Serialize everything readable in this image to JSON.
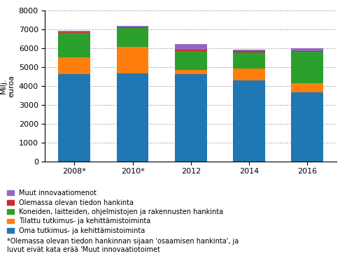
{
  "chart_data": {
    "type": "bar",
    "stacked": true,
    "categories": [
      "2008*",
      "2010*",
      "2012",
      "2014",
      "2016"
    ],
    "series": [
      {
        "name": "Oma tutkimus- ja kehittämistoiminta",
        "values": [
          4600,
          4650,
          4600,
          4300,
          3650
        ]
      },
      {
        "name": "Tilattu tutkimus- ja kehittämistoiminta",
        "values": [
          900,
          1400,
          250,
          600,
          500
        ]
      },
      {
        "name": "Koneiden, laitteiden, ohjelmistojen ja rakennusten hankinta",
        "values": [
          1300,
          1000,
          1000,
          870,
          1650
        ]
      },
      {
        "name": "Olemassa olevan tiedon hankinta",
        "values": [
          50,
          50,
          50,
          50,
          50
        ]
      },
      {
        "name": "Muut innovaatiomenot",
        "values": [
          70,
          70,
          300,
          80,
          130
        ]
      }
    ],
    "y_label": "Milj.\neuroa",
    "ylim": [
      0,
      8000
    ],
    "yticks": [
      0,
      1000,
      2000,
      3000,
      4000,
      5000,
      6000,
      7000,
      8000
    ],
    "grid": true,
    "legend": "lower left",
    "annotations": [
      "*Olemassa olevan tiedon hankinnan sijaan 'osaamisen hankinta', ja",
      "luvut eivät kata erää 'Muut innovaatiotoimet"
    ]
  }
}
